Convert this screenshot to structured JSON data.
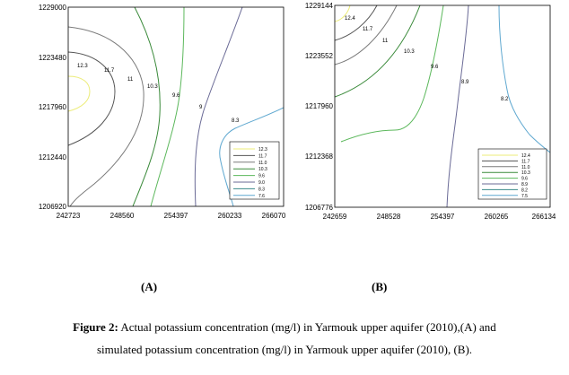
{
  "figure": {
    "panels": [
      {
        "id": "A",
        "label": "(A)",
        "y_ticks": [
          "1229000",
          "1223480",
          "1217960",
          "1212440",
          "1206920"
        ],
        "x_ticks": [
          "242723",
          "248560",
          "254397",
          "260233",
          "266070"
        ],
        "contour_labels": [
          "12.3",
          "11.7",
          "11",
          "10.3",
          "9.6",
          "9",
          "8.3"
        ],
        "legend": [
          "12.3",
          "11.7",
          "11.0",
          "10.3",
          "9.6",
          "9.0",
          "8.3",
          "7.6"
        ]
      },
      {
        "id": "B",
        "label": "(B)",
        "y_ticks": [
          "1229144",
          "1223552",
          "1217960",
          "1212368",
          "1206776"
        ],
        "x_ticks": [
          "242659",
          "248528",
          "254397",
          "260265",
          "266134"
        ],
        "contour_labels": [
          "12.4",
          "11.7",
          "11",
          "10.3",
          "9.6",
          "8.9",
          "8.2"
        ],
        "legend": [
          "12.4",
          "11.7",
          "11.0",
          "10.3",
          "9.6",
          "8.9",
          "8.2",
          "7.5"
        ]
      }
    ],
    "legend_colors": [
      "#ecec78",
      "#555555",
      "#7a7a7a",
      "#3a8a3a",
      "#5cb85c",
      "#6a6a96",
      "#3a8a8a",
      "#5fa8d0"
    ],
    "caption": {
      "prefix": "Figure 2:",
      "line1": " Actual potassium concentration (mg/l) in Yarmouk upper aquifer (2010),(A) and",
      "line2": "simulated potassium concentration (mg/l) in Yarmouk upper aquifer (2010), (B)."
    }
  }
}
